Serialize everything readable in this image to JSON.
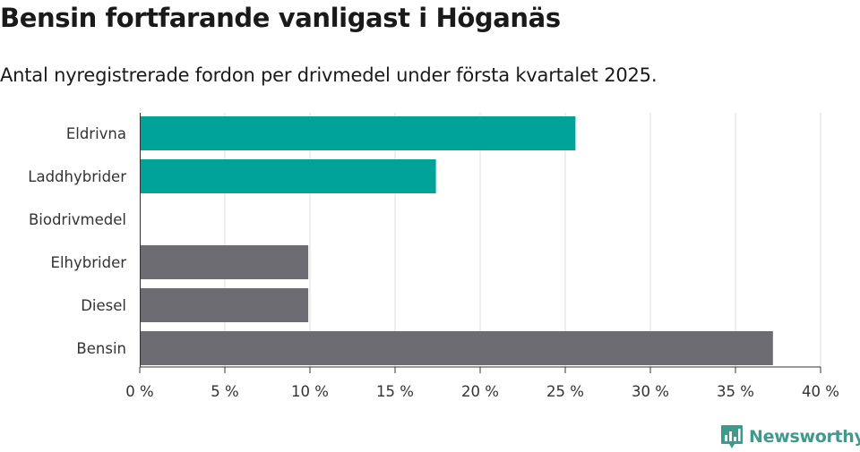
{
  "header": {
    "title": "Bensin fortfarande vanligast i Höganäs",
    "subtitle": "Antal nyregistrerade fordon per drivmedel under första kvartalet 2025."
  },
  "brand": {
    "name": "Newsworthy",
    "icon": "bar-chart-logo-icon",
    "color": "#3e9a8d"
  },
  "colors": {
    "highlight": "#00a398",
    "default": "#6d6c72",
    "grid": "#dddddd",
    "axis": "#333333"
  },
  "chart_data": {
    "type": "bar",
    "orientation": "horizontal",
    "categories": [
      "Eldrivna",
      "Laddhybrider",
      "Biodrivmedel",
      "Elhybrider",
      "Diesel",
      "Bensin"
    ],
    "values": [
      25.6,
      17.4,
      0,
      9.9,
      9.9,
      37.2
    ],
    "highlighted": [
      true,
      true,
      false,
      false,
      false,
      false
    ],
    "xlim": [
      0,
      40
    ],
    "xticks": [
      0,
      5,
      10,
      15,
      20,
      25,
      30,
      35,
      40
    ],
    "tick_labels": [
      "0 %",
      "5 %",
      "10 %",
      "15 %",
      "20 %",
      "25 %",
      "30 %",
      "35 %",
      "40 %"
    ],
    "xlabel": "",
    "ylabel": "",
    "grid": "vertical",
    "legend": "none"
  }
}
